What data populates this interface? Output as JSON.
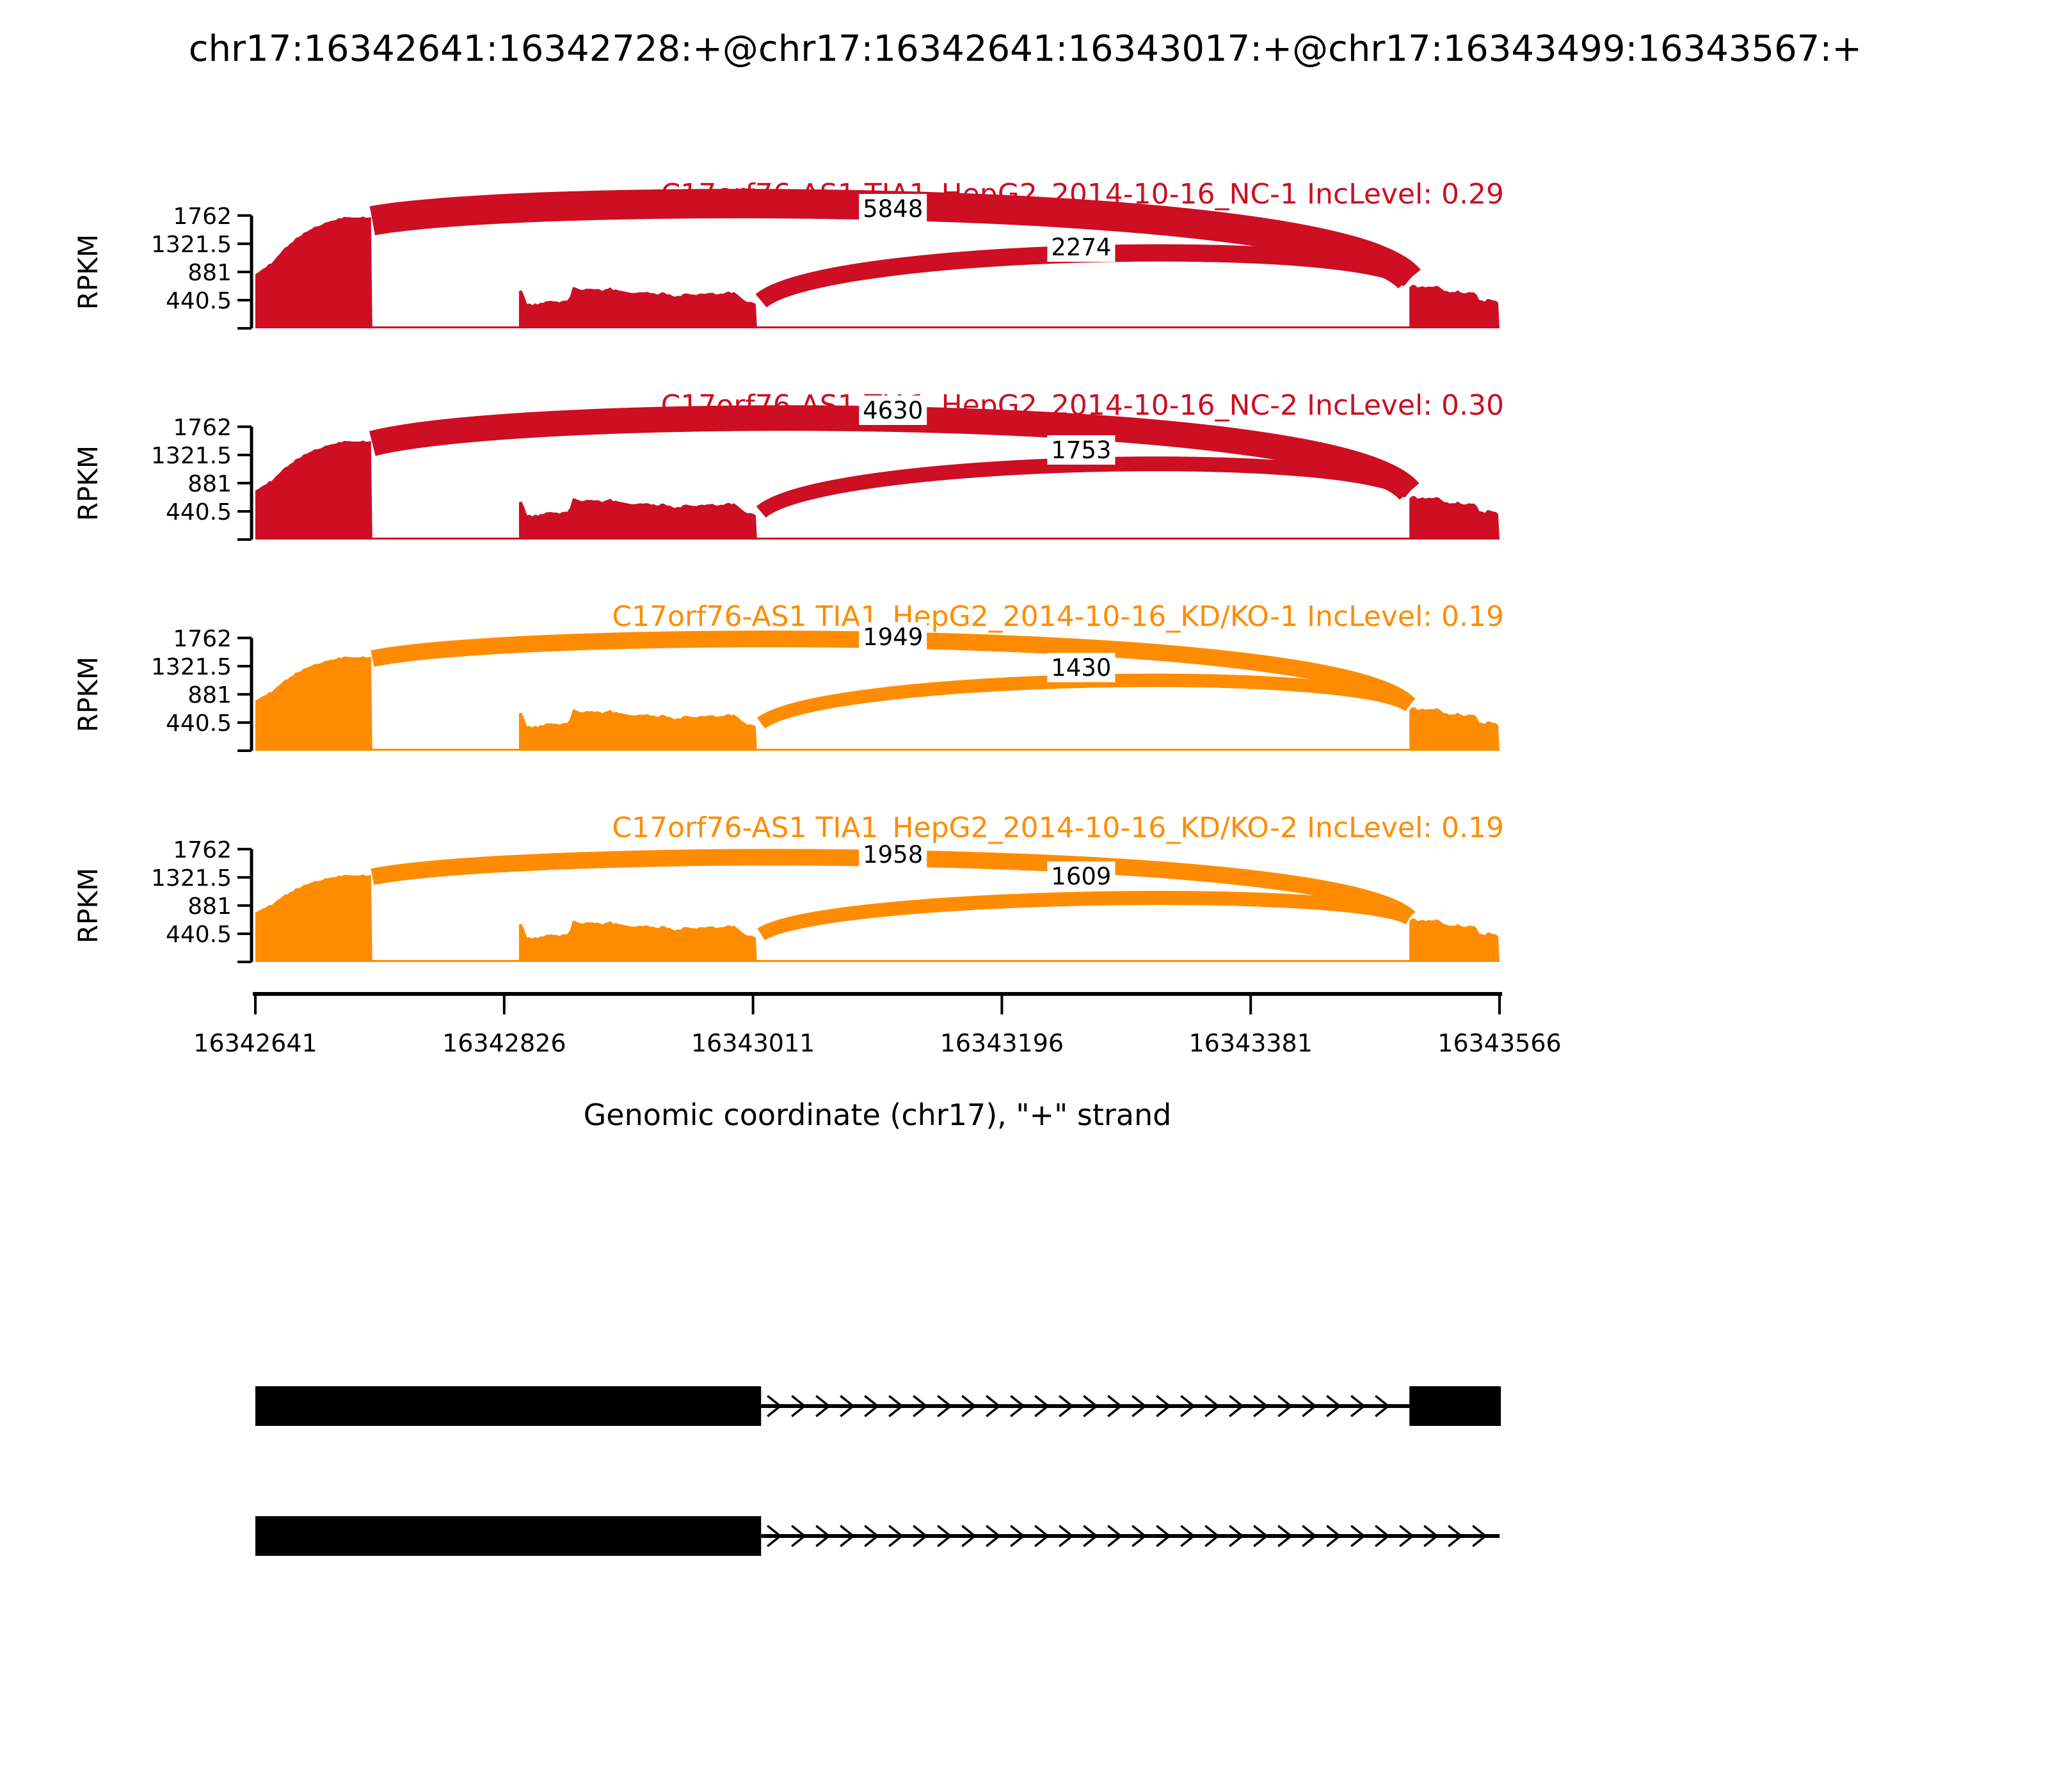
{
  "title": "chr17:16342641:16342728:+@chr17:16342641:16343017:+@chr17:16343499:16343567:+",
  "chart_data": {
    "type": "area",
    "subtype": "sashimi-plot",
    "xlabel": "Genomic coordinate (chr17), \"+\" strand",
    "ylabel": "RPKM",
    "chrom": "chr17",
    "strand": "+",
    "x_range": [
      16342641,
      16343566
    ],
    "xticks": [
      16342641,
      16342826,
      16343011,
      16343196,
      16343381,
      16343566
    ],
    "yticks": [
      440.5,
      881,
      1321.5,
      1762
    ],
    "ymax_rpkm": 1762,
    "grid": false,
    "samples": [
      {
        "name": "C17orf76-AS1 TIA1_HepG2_2014-10-16_NC-1",
        "inc_level": 0.29,
        "inc_level_label": "IncLevel: 0.29",
        "color": "#CD0E23",
        "exon1_start_rpkm": 860,
        "exon1_peak_rpkm": 1740,
        "junctions": [
          {
            "count": 5848,
            "from": 16342728,
            "to": 16343499,
            "start_rpkm": 1680,
            "end_rpkm": 770,
            "peak_rpkm": 2130,
            "thickness": 46,
            "label_x": 16343115,
            "label_rpkm": 1870
          },
          {
            "count": 2274,
            "from": 16343017,
            "to": 16343499,
            "start_rpkm": 430,
            "end_rpkm": 760,
            "peak_rpkm": 1430,
            "thickness": 27,
            "label_x": 16343255,
            "label_rpkm": 1270
          }
        ]
      },
      {
        "name": "C17orf76-AS1 TIA1_HepG2_2014-10-16_NC-2",
        "inc_level": 0.3,
        "inc_level_label": "IncLevel: 0.30",
        "color": "#CD0E23",
        "exon1_start_rpkm": 780,
        "exon1_peak_rpkm": 1540,
        "junctions": [
          {
            "count": 4630,
            "from": 16342728,
            "to": 16343499,
            "start_rpkm": 1500,
            "end_rpkm": 750,
            "peak_rpkm": 2120,
            "thickness": 40,
            "label_x": 16343115,
            "label_rpkm": 2020
          },
          {
            "count": 1753,
            "from": 16343017,
            "to": 16343499,
            "start_rpkm": 430,
            "end_rpkm": 740,
            "peak_rpkm": 1440,
            "thickness": 23,
            "label_x": 16343255,
            "label_rpkm": 1400
          }
        ]
      },
      {
        "name": "C17orf76-AS1 TIA1_HepG2_2014-10-16_KD/KO-1",
        "inc_level": 0.19,
        "inc_level_label": "IncLevel: 0.19",
        "color": "#FF8C00",
        "exon1_start_rpkm": 800,
        "exon1_peak_rpkm": 1470,
        "junctions": [
          {
            "count": 1949,
            "from": 16342728,
            "to": 16343499,
            "start_rpkm": 1440,
            "end_rpkm": 720,
            "peak_rpkm": 1930,
            "thickness": 26,
            "label_x": 16343115,
            "label_rpkm": 1780
          },
          {
            "count": 1430,
            "from": 16343017,
            "to": 16343499,
            "start_rpkm": 430,
            "end_rpkm": 700,
            "peak_rpkm": 1330,
            "thickness": 21,
            "label_x": 16343255,
            "label_rpkm": 1300
          }
        ]
      },
      {
        "name": "C17orf76-AS1 TIA1_HepG2_2014-10-16_KD/KO-2",
        "inc_level": 0.19,
        "inc_level_label": "IncLevel: 0.19",
        "color": "#FF8C00",
        "exon1_start_rpkm": 790,
        "exon1_peak_rpkm": 1360,
        "junctions": [
          {
            "count": 1958,
            "from": 16342728,
            "to": 16343499,
            "start_rpkm": 1330,
            "end_rpkm": 690,
            "peak_rpkm": 1810,
            "thickness": 26,
            "label_x": 16343115,
            "label_rpkm": 1680
          },
          {
            "count": 1609,
            "from": 16343017,
            "to": 16343499,
            "start_rpkm": 430,
            "end_rpkm": 680,
            "peak_rpkm": 1190,
            "thickness": 22,
            "label_x": 16343255,
            "label_rpkm": 1340
          }
        ]
      }
    ],
    "coverage": {
      "exon1_span": [
        16342641,
        16342728
      ],
      "exon2_span": [
        16342837,
        16343014
      ],
      "exon3_span": [
        16343499,
        16343566
      ],
      "exon2_profile": [
        [
          196,
          590
        ],
        [
          199,
          615
        ],
        [
          201,
          380
        ],
        [
          207,
          370
        ],
        [
          214,
          395
        ],
        [
          221,
          430
        ],
        [
          228,
          415
        ],
        [
          233,
          430
        ],
        [
          236,
          655
        ],
        [
          241,
          600
        ],
        [
          248,
          615
        ],
        [
          257,
          590
        ],
        [
          264,
          625
        ],
        [
          272,
          585
        ],
        [
          280,
          555
        ],
        [
          288,
          570
        ],
        [
          296,
          535
        ],
        [
          304,
          555
        ],
        [
          312,
          495
        ],
        [
          320,
          535
        ],
        [
          328,
          515
        ],
        [
          336,
          555
        ],
        [
          344,
          535
        ],
        [
          352,
          565
        ],
        [
          358,
          545
        ],
        [
          364,
          420
        ],
        [
          369,
          395
        ],
        [
          373,
          360
        ]
      ],
      "exon3_profile": [
        [
          858,
          640
        ],
        [
          861,
          700
        ],
        [
          864,
          645
        ],
        [
          869,
          660
        ],
        [
          874,
          635
        ],
        [
          879,
          675
        ],
        [
          884,
          600
        ],
        [
          889,
          560
        ],
        [
          894,
          580
        ],
        [
          900,
          555
        ],
        [
          906,
          565
        ],
        [
          911,
          420
        ],
        [
          916,
          445
        ],
        [
          921,
          430
        ],
        [
          925,
          395
        ]
      ]
    },
    "transcripts": [
      {
        "exons": [
          [
            16342641,
            16343017
          ],
          [
            16343499,
            16343567
          ]
        ],
        "intron": [
          16343017,
          16343499
        ],
        "arrow_line_to": null
      },
      {
        "exons": [
          [
            16342641,
            16343017
          ]
        ],
        "intron": null,
        "arrow_line_to": 16343566
      }
    ]
  }
}
